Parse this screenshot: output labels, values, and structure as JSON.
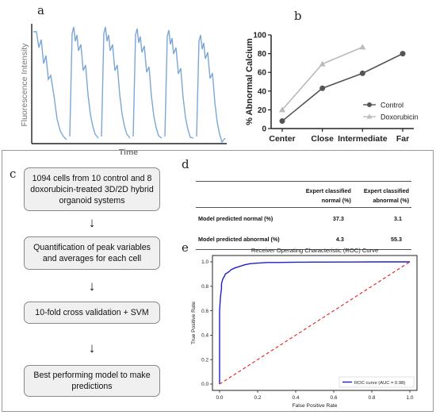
{
  "labels": {
    "a": "a",
    "b": "b",
    "c": "c",
    "d": "d",
    "e": "e"
  },
  "panel_a": {
    "ylabel": "Fluorescence Intensity",
    "xlabel": "Time",
    "line_color": "#7ba7d6"
  },
  "panel_c": {
    "steps": [
      "1094 cells from 10 control and 8 doxorubicin-treated 3D/2D hybrid organoid systems",
      "Quantification of peak variables and averages for each cell",
      "10-fold cross validation + SVM",
      "Best performing model to make predictions"
    ],
    "arrow": "↓"
  },
  "panel_d": {
    "col1_line1": "Expert classified",
    "col1_line2": "normal (%)",
    "col2_line1": "Expert classified",
    "col2_line2": "abnormal (%)",
    "rows": [
      {
        "label": "Model predicted normal (%)",
        "v1": "37.3",
        "v2": "3.1"
      },
      {
        "label": "Model predicted abnormal (%)",
        "v1": "4.3",
        "v2": "55.3"
      }
    ]
  },
  "chart_data": [
    {
      "type": "line",
      "panel": "b",
      "title": "",
      "xlabel": "",
      "ylabel": "% Abnormal Calcium",
      "categories": [
        "Center",
        "Close",
        "Intermediate",
        "Far"
      ],
      "ylim": [
        0,
        100
      ],
      "yticks": [
        "0",
        "20",
        "40",
        "60",
        "80",
        "100"
      ],
      "series": [
        {
          "name": "Control",
          "values": [
            8,
            43,
            59,
            80
          ],
          "color": "#555555",
          "marker": "circle"
        },
        {
          "name": "Doxorubicin",
          "values": [
            20,
            69,
            87,
            null
          ],
          "color": "#bbbbbb",
          "marker": "triangle"
        }
      ],
      "legend": "bottom-right",
      "grid": false
    },
    {
      "type": "line",
      "panel": "e",
      "title": "Receiver Operating Characteristic (ROC) Curve",
      "xlabel": "False Positive Rate",
      "ylabel": "True Positive Rate",
      "xlim": [
        0,
        1
      ],
      "ylim": [
        0,
        1
      ],
      "xticks": [
        "0.0",
        "0.2",
        "0.4",
        "0.6",
        "0.8",
        "1.0"
      ],
      "yticks": [
        "0.0",
        "0.2",
        "0.4",
        "0.6",
        "0.8",
        "1.0"
      ],
      "series": [
        {
          "name": "ROC curve (AUC = 0.98)",
          "color": "#1f1fcc",
          "x": [
            0,
            0,
            0.005,
            0.01,
            0.01,
            0.015,
            0.02,
            0.025,
            0.03,
            0.04,
            0.05,
            0.06,
            0.08,
            0.1,
            0.13,
            0.16,
            0.2,
            0.25,
            0.3,
            0.4,
            0.5,
            0.7,
            0.85,
            1.0
          ],
          "y": [
            0,
            0.6,
            0.72,
            0.78,
            0.82,
            0.85,
            0.87,
            0.88,
            0.9,
            0.91,
            0.92,
            0.935,
            0.95,
            0.96,
            0.975,
            0.985,
            0.99,
            0.995,
            0.995,
            0.997,
            0.998,
            0.999,
            1.0,
            1.0
          ]
        },
        {
          "name": "",
          "color": "#e03030",
          "dashed": true,
          "x": [
            0,
            1
          ],
          "y": [
            0,
            1
          ]
        }
      ],
      "legend": "bottom-right",
      "grid": false
    }
  ]
}
